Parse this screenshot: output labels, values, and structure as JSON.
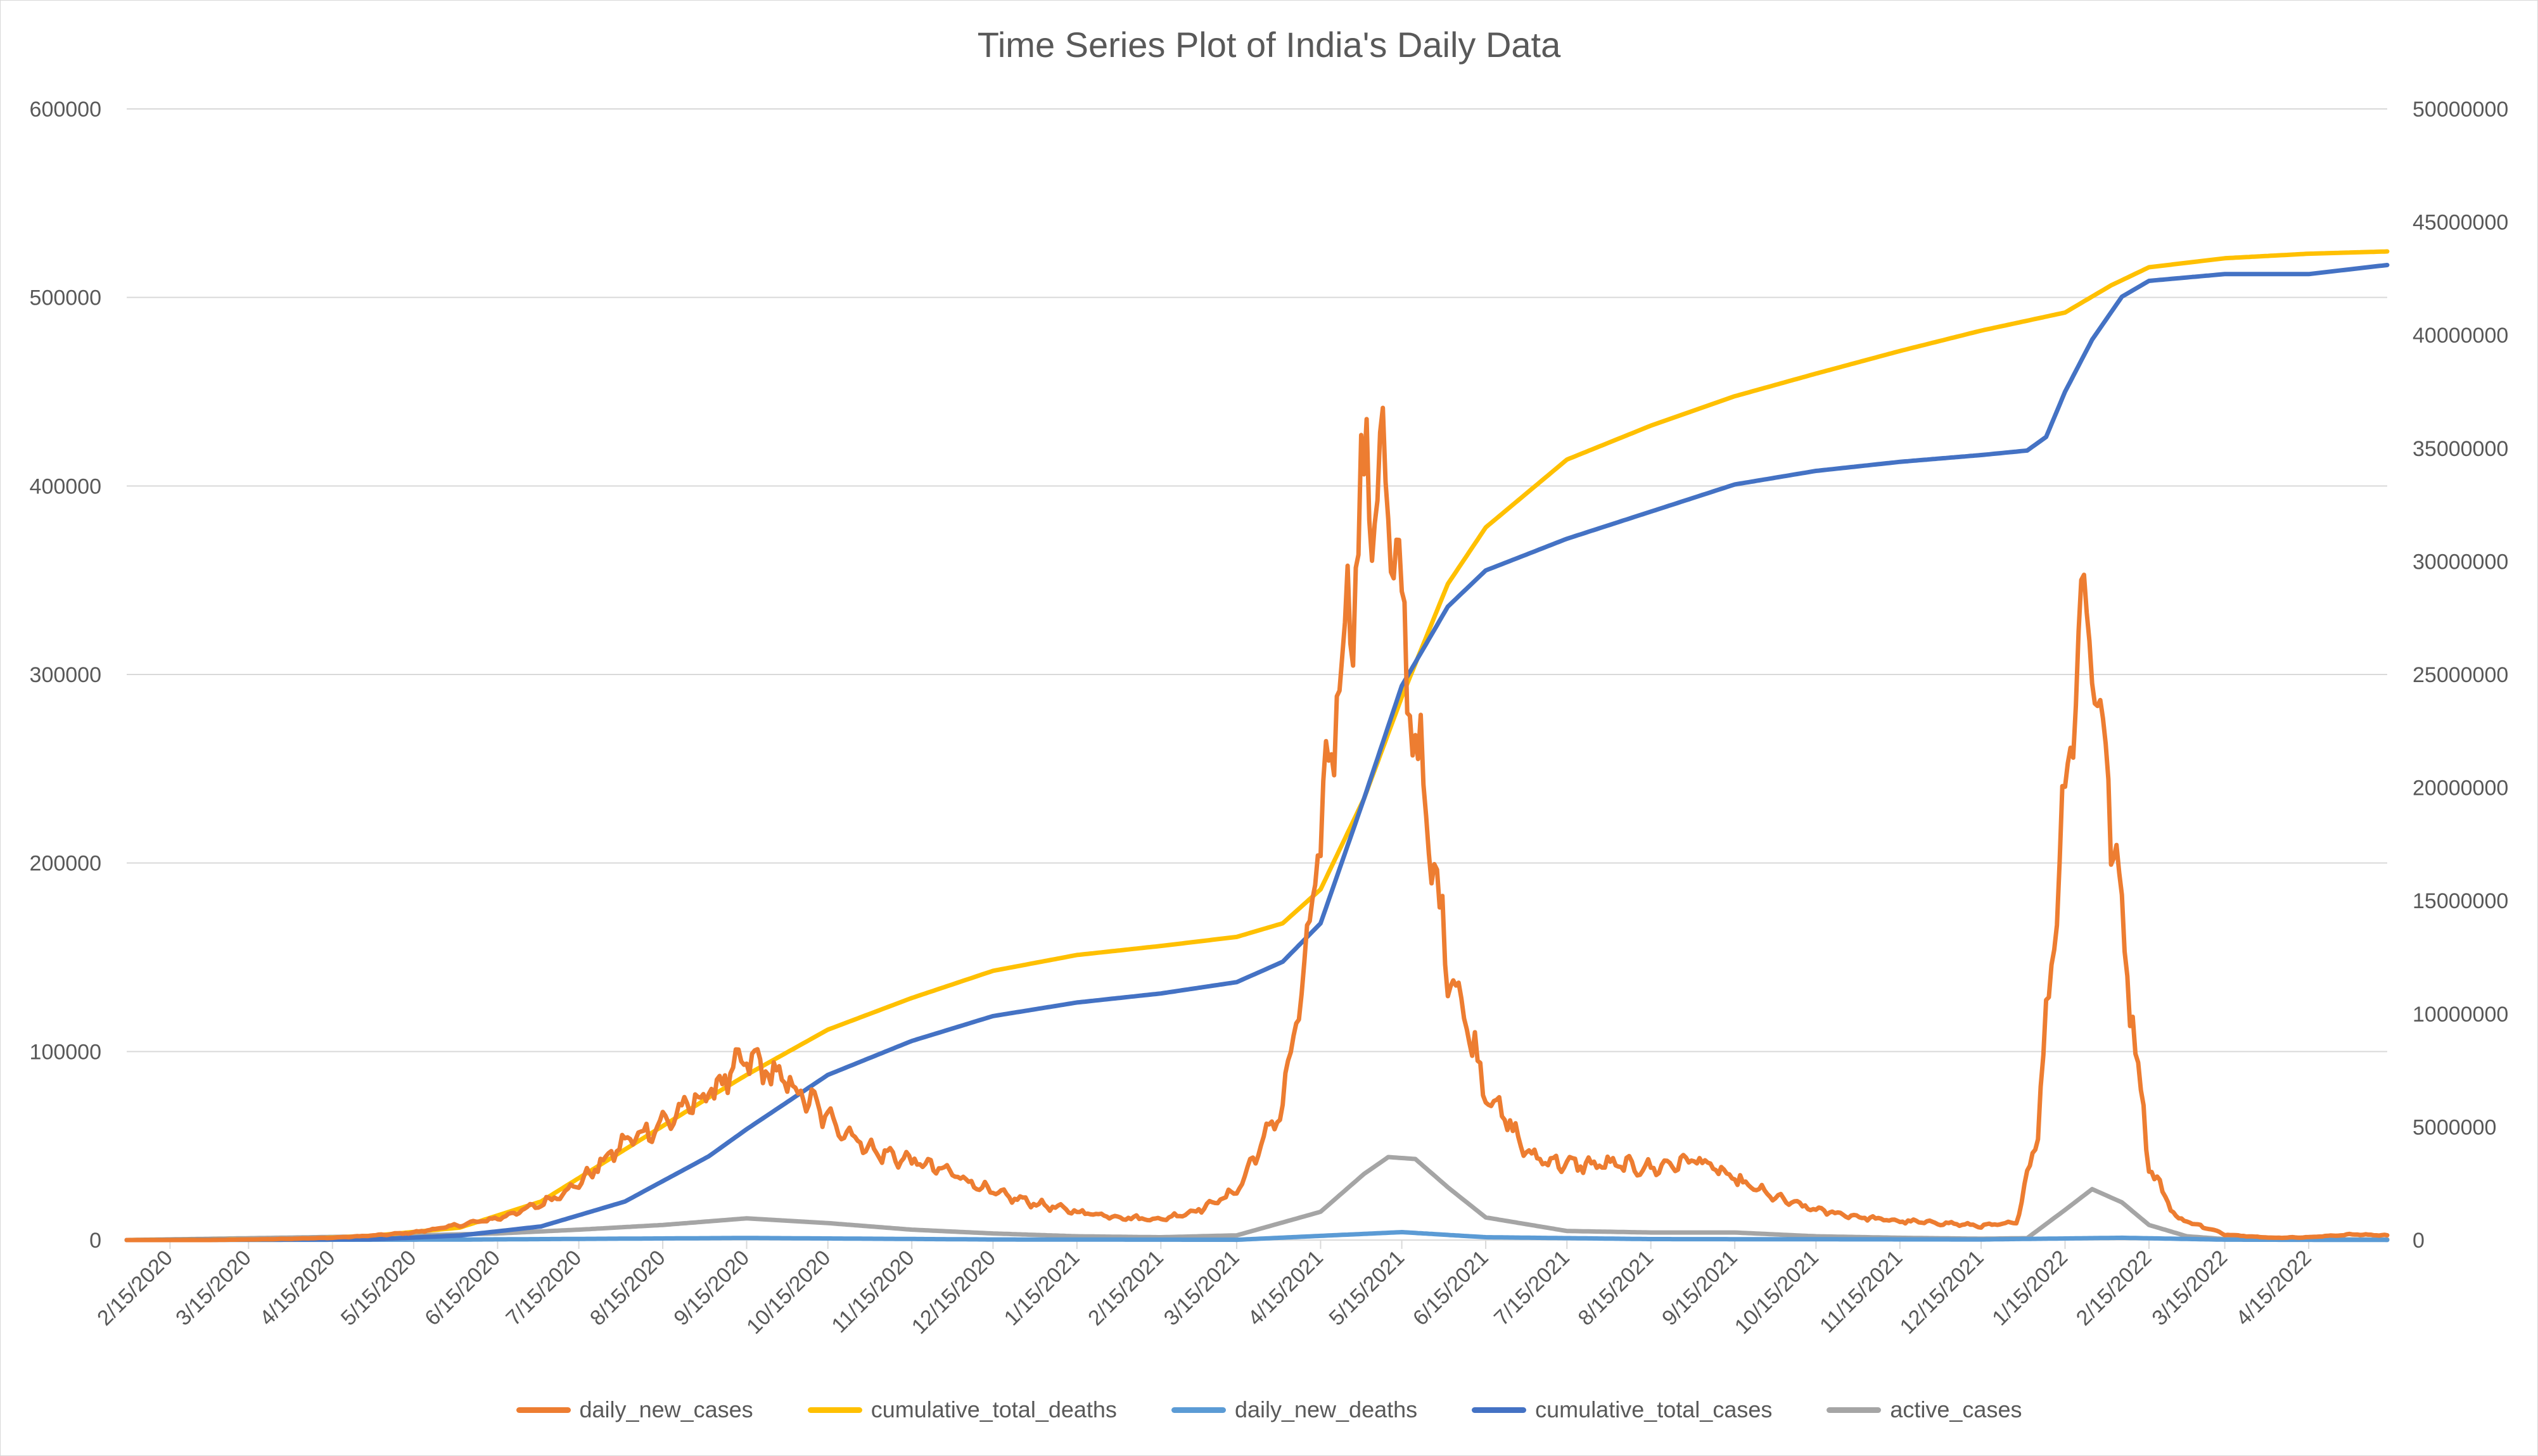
{
  "chart_data": {
    "type": "line",
    "title": "Time Series Plot of India's Daily Data",
    "xlabel": "",
    "ylabel": "",
    "y2label": "",
    "x_start": "2020-01-30",
    "x_end": "2022-05-14",
    "x_tick_labels": [
      "2/15/2020",
      "3/15/2020",
      "4/15/2020",
      "5/15/2020",
      "6/15/2020",
      "7/15/2020",
      "8/15/2020",
      "9/15/2020",
      "10/15/2020",
      "11/15/2020",
      "12/15/2020",
      "1/15/2021",
      "2/15/2021",
      "3/15/2021",
      "4/15/2021",
      "5/15/2021",
      "6/15/2021",
      "7/15/2021",
      "8/15/2021",
      "9/15/2021",
      "10/15/2021",
      "11/15/2021",
      "12/15/2021",
      "1/15/2022",
      "2/15/2022",
      "3/15/2022",
      "4/15/2022"
    ],
    "ylim": [
      0,
      600000
    ],
    "y_ticks": [
      "0",
      "100000",
      "200000",
      "300000",
      "400000",
      "500000",
      "600000"
    ],
    "y2lim": [
      0,
      50000000
    ],
    "y2_ticks": [
      "0",
      "5000000",
      "10000000",
      "15000000",
      "20000000",
      "25000000",
      "30000000",
      "35000000",
      "40000000",
      "45000000",
      "50000000"
    ],
    "grid": true,
    "legend_position": "bottom",
    "series": [
      {
        "name": "daily_new_cases",
        "axis": "left",
        "color": "#ED7D31",
        "noisy": true,
        "points": [
          [
            "2020-01-30",
            0
          ],
          [
            "2020-03-01",
            0
          ],
          [
            "2020-03-25",
            500
          ],
          [
            "2020-04-15",
            1200
          ],
          [
            "2020-05-01",
            2500
          ],
          [
            "2020-05-15",
            4000
          ],
          [
            "2020-06-01",
            8000
          ],
          [
            "2020-06-15",
            11500
          ],
          [
            "2020-07-01",
            19000
          ],
          [
            "2020-07-15",
            30000
          ],
          [
            "2020-08-01",
            52000
          ],
          [
            "2020-08-15",
            62000
          ],
          [
            "2020-09-01",
            78000
          ],
          [
            "2020-09-16",
            96000
          ],
          [
            "2020-10-01",
            82000
          ],
          [
            "2020-10-15",
            65000
          ],
          [
            "2020-11-01",
            47000
          ],
          [
            "2020-11-15",
            42000
          ],
          [
            "2020-12-01",
            35000
          ],
          [
            "2020-12-15",
            25000
          ],
          [
            "2021-01-01",
            19000
          ],
          [
            "2021-01-15",
            15000
          ],
          [
            "2021-02-01",
            12000
          ],
          [
            "2021-02-15",
            11000
          ],
          [
            "2021-03-01",
            16000
          ],
          [
            "2021-03-15",
            26000
          ],
          [
            "2021-04-01",
            72000
          ],
          [
            "2021-04-10",
            150000
          ],
          [
            "2021-04-20",
            280000
          ],
          [
            "2021-05-01",
            395000
          ],
          [
            "2021-05-07",
            412000
          ],
          [
            "2021-05-15",
            330000
          ],
          [
            "2021-05-25",
            210000
          ],
          [
            "2021-06-01",
            150000
          ],
          [
            "2021-06-15",
            80000
          ],
          [
            "2021-07-01",
            45000
          ],
          [
            "2021-07-15",
            40000
          ],
          [
            "2021-08-01",
            40000
          ],
          [
            "2021-08-15",
            38000
          ],
          [
            "2021-09-01",
            43000
          ],
          [
            "2021-09-15",
            32000
          ],
          [
            "2021-10-01",
            22000
          ],
          [
            "2021-10-15",
            16000
          ],
          [
            "2021-11-01",
            12000
          ],
          [
            "2021-11-15",
            10000
          ],
          [
            "2021-12-01",
            9000
          ],
          [
            "2021-12-15",
            7500
          ],
          [
            "2021-12-28",
            9000
          ],
          [
            "2022-01-05",
            60000
          ],
          [
            "2022-01-15",
            240000
          ],
          [
            "2022-01-22",
            345000
          ],
          [
            "2022-01-28",
            280000
          ],
          [
            "2022-02-05",
            170000
          ],
          [
            "2022-02-15",
            40000
          ],
          [
            "2022-02-25",
            12000
          ],
          [
            "2022-03-15",
            3000
          ],
          [
            "2022-04-01",
            1200
          ],
          [
            "2022-04-15",
            1500
          ],
          [
            "2022-05-01",
            3000
          ],
          [
            "2022-05-14",
            2500
          ]
        ]
      },
      {
        "name": "cumulative_total_deaths",
        "axis": "right",
        "color": "#FFC000",
        "noisy": false,
        "points": [
          [
            "2020-01-30",
            0
          ],
          [
            "2020-04-01",
            30000
          ],
          [
            "2020-05-01",
            200000
          ],
          [
            "2020-06-01",
            550000
          ],
          [
            "2020-07-01",
            1700000
          ],
          [
            "2020-08-01",
            4000000
          ],
          [
            "2020-09-01",
            6300000
          ],
          [
            "2020-09-15",
            7300000
          ],
          [
            "2020-10-15",
            9300000
          ],
          [
            "2020-11-15",
            10700000
          ],
          [
            "2020-12-15",
            11900000
          ],
          [
            "2021-01-15",
            12600000
          ],
          [
            "2021-02-15",
            13000000
          ],
          [
            "2021-03-15",
            13400000
          ],
          [
            "2021-04-01",
            14000000
          ],
          [
            "2021-04-15",
            15500000
          ],
          [
            "2021-05-01",
            19500000
          ],
          [
            "2021-05-15",
            24000000
          ],
          [
            "2021-06-01",
            29000000
          ],
          [
            "2021-06-15",
            31500000
          ],
          [
            "2021-07-15",
            34500000
          ],
          [
            "2021-08-15",
            36000000
          ],
          [
            "2021-09-15",
            37300000
          ],
          [
            "2021-10-15",
            38300000
          ],
          [
            "2021-11-15",
            39300000
          ],
          [
            "2021-12-15",
            40200000
          ],
          [
            "2022-01-15",
            41000000
          ],
          [
            "2022-02-01",
            42200000
          ],
          [
            "2022-02-15",
            43000000
          ],
          [
            "2022-03-15",
            43400000
          ],
          [
            "2022-04-15",
            43600000
          ],
          [
            "2022-05-14",
            43700000
          ]
        ]
      },
      {
        "name": "daily_new_deaths",
        "axis": "left",
        "color": "#5B9BD5",
        "noisy": false,
        "points": [
          [
            "2020-01-30",
            0
          ],
          [
            "2020-06-01",
            250
          ],
          [
            "2020-09-15",
            1100
          ],
          [
            "2020-12-15",
            300
          ],
          [
            "2021-03-15",
            150
          ],
          [
            "2021-05-15",
            4200
          ],
          [
            "2021-06-15",
            1500
          ],
          [
            "2021-08-15",
            500
          ],
          [
            "2021-12-15",
            300
          ],
          [
            "2022-02-05",
            1200
          ],
          [
            "2022-03-15",
            200
          ],
          [
            "2022-05-14",
            50
          ]
        ]
      },
      {
        "name": "cumulative_total_cases",
        "axis": "right",
        "color": "#4472C4",
        "noisy": false,
        "points": [
          [
            "2020-01-30",
            0
          ],
          [
            "2020-05-01",
            35000
          ],
          [
            "2020-06-01",
            200000
          ],
          [
            "2020-07-01",
            600000
          ],
          [
            "2020-08-01",
            1700000
          ],
          [
            "2020-09-01",
            3700000
          ],
          [
            "2020-09-15",
            4900000
          ],
          [
            "2020-10-15",
            7300000
          ],
          [
            "2020-11-15",
            8800000
          ],
          [
            "2020-12-15",
            9900000
          ],
          [
            "2021-01-15",
            10500000
          ],
          [
            "2021-02-15",
            10900000
          ],
          [
            "2021-03-15",
            11400000
          ],
          [
            "2021-04-01",
            12300000
          ],
          [
            "2021-04-15",
            14000000
          ],
          [
            "2021-05-01",
            19500000
          ],
          [
            "2021-05-15",
            24500000
          ],
          [
            "2021-06-01",
            28000000
          ],
          [
            "2021-06-15",
            29600000
          ],
          [
            "2021-07-15",
            31000000
          ],
          [
            "2021-08-15",
            32200000
          ],
          [
            "2021-09-15",
            33400000
          ],
          [
            "2021-10-15",
            34000000
          ],
          [
            "2021-11-15",
            34400000
          ],
          [
            "2021-12-15",
            34700000
          ],
          [
            "2022-01-01",
            34900000
          ],
          [
            "2022-01-08",
            35500000
          ],
          [
            "2022-01-15",
            37500000
          ],
          [
            "2022-01-25",
            39800000
          ],
          [
            "2022-02-05",
            41700000
          ],
          [
            "2022-02-15",
            42400000
          ],
          [
            "2022-03-15",
            42700000
          ],
          [
            "2022-04-15",
            42700000
          ],
          [
            "2022-05-14",
            43100000
          ]
        ]
      },
      {
        "name": "active_cases",
        "axis": "left",
        "color": "#A5A5A5",
        "noisy": false,
        "points": [
          [
            "2020-01-30",
            0
          ],
          [
            "2020-05-01",
            2000
          ],
          [
            "2020-06-15",
            3500
          ],
          [
            "2020-07-15",
            5500
          ],
          [
            "2020-08-15",
            8000
          ],
          [
            "2020-09-15",
            11500
          ],
          [
            "2020-10-15",
            9000
          ],
          [
            "2020-11-15",
            5500
          ],
          [
            "2020-12-15",
            3500
          ],
          [
            "2021-01-15",
            2000
          ],
          [
            "2021-02-15",
            1500
          ],
          [
            "2021-03-15",
            2500
          ],
          [
            "2021-04-15",
            15000
          ],
          [
            "2021-05-01",
            35000
          ],
          [
            "2021-05-10",
            44000
          ],
          [
            "2021-05-20",
            43000
          ],
          [
            "2021-06-01",
            28000
          ],
          [
            "2021-06-15",
            12000
          ],
          [
            "2021-07-15",
            4800
          ],
          [
            "2021-08-15",
            4000
          ],
          [
            "2021-09-15",
            4000
          ],
          [
            "2021-10-15",
            2000
          ],
          [
            "2021-11-15",
            1200
          ],
          [
            "2021-12-15",
            700
          ],
          [
            "2022-01-01",
            1000
          ],
          [
            "2022-01-15",
            16000
          ],
          [
            "2022-01-25",
            27000
          ],
          [
            "2022-02-05",
            20000
          ],
          [
            "2022-02-15",
            8000
          ],
          [
            "2022-03-01",
            2000
          ],
          [
            "2022-03-15",
            500
          ],
          [
            "2022-05-14",
            300
          ]
        ]
      }
    ]
  }
}
